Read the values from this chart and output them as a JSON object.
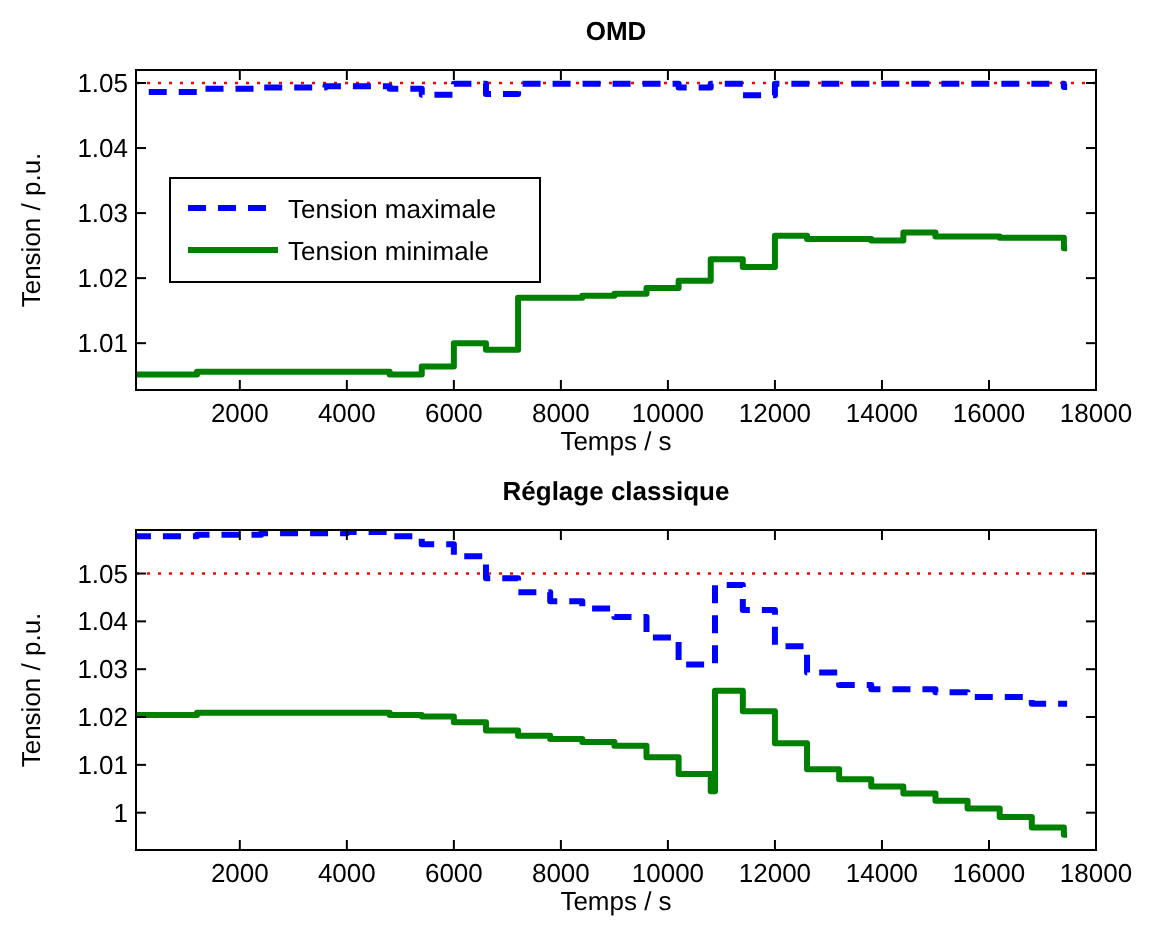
{
  "chart_data": [
    {
      "type": "step",
      "title": "OMD",
      "xlabel": "Temps / s",
      "ylabel": "Tension / p.u.",
      "xlim": [
        60,
        18000
      ],
      "xticks": [
        2000,
        4000,
        6000,
        8000,
        10000,
        12000,
        14000,
        16000,
        18000
      ],
      "ylim": [
        1.0028,
        1.052
      ],
      "yticks": [
        1.01,
        1.02,
        1.03,
        1.04,
        1.05
      ],
      "legend": "left",
      "grid": false,
      "series": [
        {
          "name": "Tension maximale",
          "color": "#0000ff",
          "line_style": "dashed",
          "x": [
            60,
            1200,
            2400,
            3600,
            4800,
            5400,
            6000,
            6600,
            7200,
            10200,
            10800,
            11400,
            12000,
            17400,
            17460
          ],
          "values": [
            1.0486,
            1.0491,
            1.0493,
            1.0495,
            1.0491,
            1.0482,
            1.0499,
            1.0483,
            1.0499,
            1.0493,
            1.0499,
            1.0481,
            1.0499,
            1.0494,
            1.0494
          ]
        },
        {
          "name": "Tension minimale",
          "color": "#008000",
          "line_style": "solid",
          "x": [
            60,
            1200,
            4800,
            5400,
            6000,
            6600,
            7200,
            8400,
            9000,
            9600,
            10200,
            10800,
            11400,
            12000,
            12600,
            13800,
            14400,
            15000,
            16200,
            17400,
            17460
          ],
          "values": [
            1.0052,
            1.0056,
            1.0052,
            1.0064,
            1.01,
            1.009,
            1.017,
            1.0173,
            1.0176,
            1.0185,
            1.0196,
            1.0229,
            1.0217,
            1.0265,
            1.026,
            1.0258,
            1.027,
            1.0264,
            1.0262,
            1.0246,
            1.0246
          ]
        }
      ],
      "ref_lines": [
        {
          "axis": "y",
          "value": 1.05,
          "color": "#ff0000",
          "line_style": "dotted"
        }
      ]
    },
    {
      "type": "step",
      "title": "Réglage classique",
      "xlabel": "Temps / s",
      "ylabel": "Tension / p.u.",
      "xlim": [
        60,
        18000
      ],
      "xticks": [
        2000,
        4000,
        6000,
        8000,
        10000,
        12000,
        14000,
        16000,
        18000
      ],
      "ylim": [
        0.9922,
        1.0591
      ],
      "yticks": [
        1,
        1.01,
        1.02,
        1.03,
        1.04,
        1.05
      ],
      "legend": false,
      "grid": false,
      "series": [
        {
          "color": "#0000ff",
          "line_style": "dashed",
          "x": [
            60,
            1200,
            2400,
            4000,
            4800,
            5400,
            6000,
            6600,
            7200,
            7800,
            8400,
            9000,
            9600,
            10200,
            10880,
            11400,
            12000,
            12600,
            13200,
            13800,
            15000,
            15600,
            16800,
            17460
          ],
          "values": [
            1.0578,
            1.0581,
            1.0584,
            1.0587,
            1.0578,
            1.0561,
            1.0536,
            1.049,
            1.0461,
            1.0442,
            1.0427,
            1.0409,
            1.0366,
            1.031,
            1.0476,
            1.0424,
            1.0348,
            1.0293,
            1.0267,
            1.0258,
            1.0252,
            1.0242,
            1.0228,
            1.0228
          ]
        },
        {
          "color": "#008000",
          "line_style": "solid",
          "x": [
            60,
            1200,
            4800,
            5400,
            6000,
            6600,
            7200,
            7800,
            8400,
            9000,
            9600,
            10200,
            10800,
            10880,
            11400,
            12000,
            12600,
            13200,
            13800,
            14400,
            15000,
            15600,
            16200,
            16800,
            17400,
            17460
          ],
          "values": [
            1.0204,
            1.0209,
            1.0204,
            1.0201,
            1.0189,
            1.0172,
            1.0161,
            1.0154,
            1.0148,
            1.014,
            1.0116,
            1.0081,
            1.0045,
            1.0255,
            1.0212,
            1.0145,
            1.0091,
            1.007,
            1.0055,
            1.004,
            1.0025,
            1.0009,
            0.9991,
            0.9969,
            0.9954,
            0.9954
          ]
        }
      ],
      "ref_lines": [
        {
          "axis": "y",
          "value": 1.05,
          "color": "#ff0000",
          "line_style": "dotted"
        }
      ]
    }
  ]
}
